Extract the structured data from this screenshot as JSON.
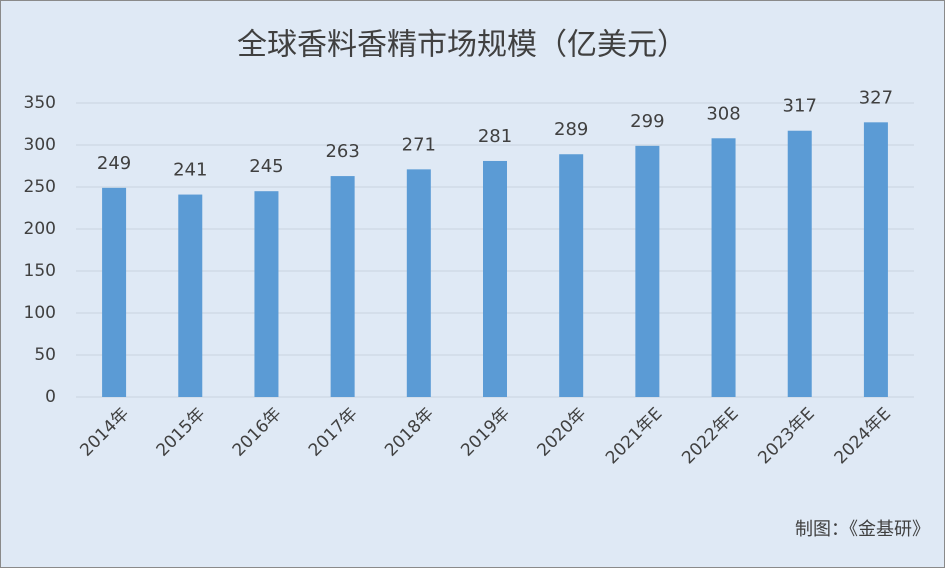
{
  "chart_data": {
    "type": "bar",
    "title": "全球香料香精市场规模（亿美元）",
    "categories": [
      "2014年",
      "2015年",
      "2016年",
      "2017年",
      "2018年",
      "2019年",
      "2020年",
      "2021年E",
      "2022年E",
      "2023年E",
      "2024年E"
    ],
    "values": [
      249,
      241,
      245,
      263,
      271,
      281,
      289,
      299,
      308,
      317,
      327
    ],
    "color": "#5b9bd5",
    "ylim": [
      0,
      350
    ],
    "yticks": [
      0,
      50,
      100,
      150,
      200,
      250,
      300,
      350
    ],
    "grid": true,
    "source": "制图：《金基研》"
  }
}
